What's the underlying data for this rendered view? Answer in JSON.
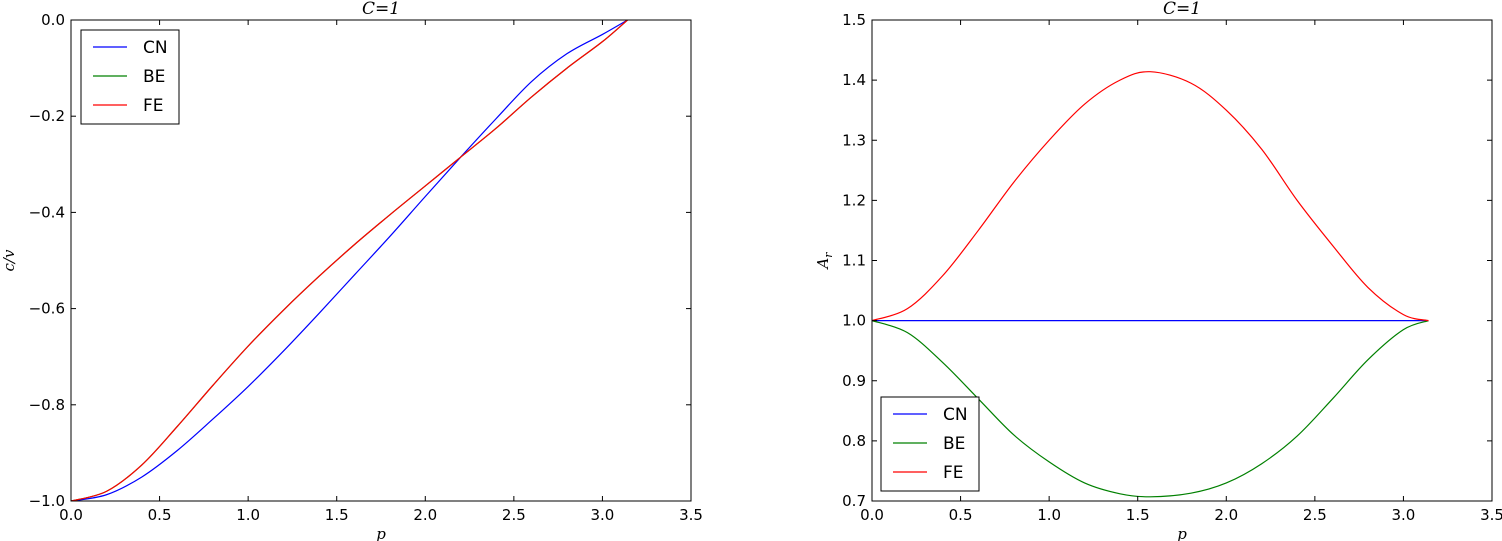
{
  "chart_data": [
    {
      "type": "line",
      "title": "C=1",
      "xlabel": "p",
      "ylabel": "c/v",
      "xlim": [
        0.0,
        3.5
      ],
      "ylim": [
        -1.0,
        0.0
      ],
      "xticks": [
        "0.0",
        "0.5",
        "1.0",
        "1.5",
        "2.0",
        "2.5",
        "3.0",
        "3.5"
      ],
      "yticks": [
        "−1.0",
        "−0.8",
        "−0.6",
        "−0.4",
        "−0.2",
        "0.0"
      ],
      "grid": false,
      "legend_position": "upper-left",
      "x": [
        0.0,
        0.2,
        0.4,
        0.6,
        0.8,
        1.0,
        1.2,
        1.4,
        1.6,
        1.8,
        2.0,
        2.2,
        2.4,
        2.6,
        2.8,
        3.0,
        3.1416
      ],
      "series": [
        {
          "name": "CN",
          "color": "#0000ff",
          "values": [
            -1.0,
            -0.987,
            -0.95,
            -0.895,
            -0.83,
            -0.762,
            -0.688,
            -0.61,
            -0.53,
            -0.45,
            -0.367,
            -0.285,
            -0.205,
            -0.128,
            -0.07,
            -0.03,
            0.0
          ]
        },
        {
          "name": "BE",
          "color": "#008000",
          "values": [
            -1.0,
            -0.98,
            -0.925,
            -0.845,
            -0.76,
            -0.678,
            -0.603,
            -0.533,
            -0.467,
            -0.405,
            -0.345,
            -0.285,
            -0.225,
            -0.16,
            -0.1,
            -0.045,
            0.0
          ]
        },
        {
          "name": "FE",
          "color": "#ff0000",
          "values": [
            -1.0,
            -0.98,
            -0.925,
            -0.845,
            -0.76,
            -0.678,
            -0.603,
            -0.533,
            -0.467,
            -0.405,
            -0.345,
            -0.285,
            -0.225,
            -0.16,
            -0.1,
            -0.045,
            0.0
          ]
        }
      ]
    },
    {
      "type": "line",
      "title": "C=1",
      "xlabel": "p",
      "ylabel": "A_r",
      "xlim": [
        0.0,
        3.5
      ],
      "ylim": [
        0.7,
        1.5
      ],
      "xticks": [
        "0.0",
        "0.5",
        "1.0",
        "1.5",
        "2.0",
        "2.5",
        "3.0",
        "3.5"
      ],
      "yticks": [
        "0.7",
        "0.8",
        "0.9",
        "1.0",
        "1.1",
        "1.2",
        "1.3",
        "1.4",
        "1.5"
      ],
      "grid": false,
      "legend_position": "lower-left",
      "x": [
        0.0,
        0.2,
        0.4,
        0.6,
        0.8,
        1.0,
        1.2,
        1.4,
        1.5708,
        1.8,
        2.0,
        2.2,
        2.4,
        2.6,
        2.8,
        3.0,
        3.1416
      ],
      "series": [
        {
          "name": "CN",
          "color": "#0000ff",
          "values": [
            1.0,
            1.0,
            1.0,
            1.0,
            1.0,
            1.0,
            1.0,
            1.0,
            1.0,
            1.0,
            1.0,
            1.0,
            1.0,
            1.0,
            1.0,
            1.0,
            1.0
          ]
        },
        {
          "name": "BE",
          "color": "#008000",
          "values": [
            1.0,
            0.98,
            0.93,
            0.87,
            0.81,
            0.765,
            0.73,
            0.712,
            0.707,
            0.713,
            0.73,
            0.762,
            0.808,
            0.87,
            0.935,
            0.985,
            1.0
          ]
        },
        {
          "name": "FE",
          "color": "#ff0000",
          "values": [
            1.0,
            1.02,
            1.075,
            1.15,
            1.23,
            1.3,
            1.36,
            1.4,
            1.414,
            1.395,
            1.35,
            1.285,
            1.2,
            1.125,
            1.055,
            1.01,
            1.0
          ]
        }
      ]
    }
  ]
}
